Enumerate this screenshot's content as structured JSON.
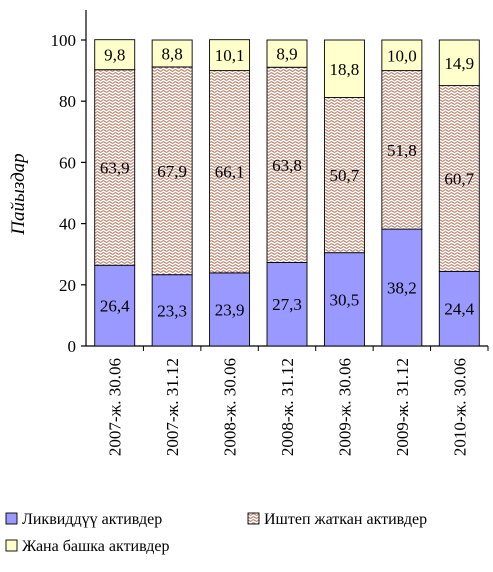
{
  "chart_data": {
    "type": "bar",
    "stacked": true,
    "categories": [
      "2007-ж. 30.06",
      "2007-ж. 31.12",
      "2008-ж. 30.06",
      "2008-ж. 31.12",
      "2009-ж. 30.06",
      "2009-ж. 31.12",
      "2010-ж. 30.06"
    ],
    "series": [
      {
        "name": "Ликвиддүү активдер",
        "values": [
          26.4,
          23.3,
          23.9,
          27.3,
          30.5,
          38.2,
          24.4
        ],
        "labels": [
          "26,4",
          "23,3",
          "23,9",
          "27,3",
          "30,5",
          "38,2",
          "24,4"
        ],
        "color": "#9999ff",
        "pattern": "solid"
      },
      {
        "name": "Иштеп жаткан активдер",
        "values": [
          63.9,
          67.9,
          66.1,
          63.8,
          50.7,
          51.8,
          60.7
        ],
        "labels": [
          "63,9",
          "67,9",
          "66,1",
          "63,8",
          "50,7",
          "51,8",
          "60,7"
        ],
        "color": "#b06a50",
        "pattern": "wave"
      },
      {
        "name": "Жана башка активдер",
        "values": [
          9.8,
          8.8,
          10.1,
          8.9,
          18.8,
          10.0,
          14.9
        ],
        "labels": [
          "9,8",
          "8,8",
          "10,1",
          "8,9",
          "18,8",
          "10,0",
          "14,9"
        ],
        "color": "#ffffcc",
        "pattern": "solid"
      }
    ],
    "title": "",
    "xlabel": "",
    "ylabel": "Пайыздар",
    "ylim": [
      0,
      100
    ],
    "yticks": [
      0,
      20,
      40,
      60,
      80,
      100
    ],
    "grid": false,
    "legend": "bottom"
  }
}
